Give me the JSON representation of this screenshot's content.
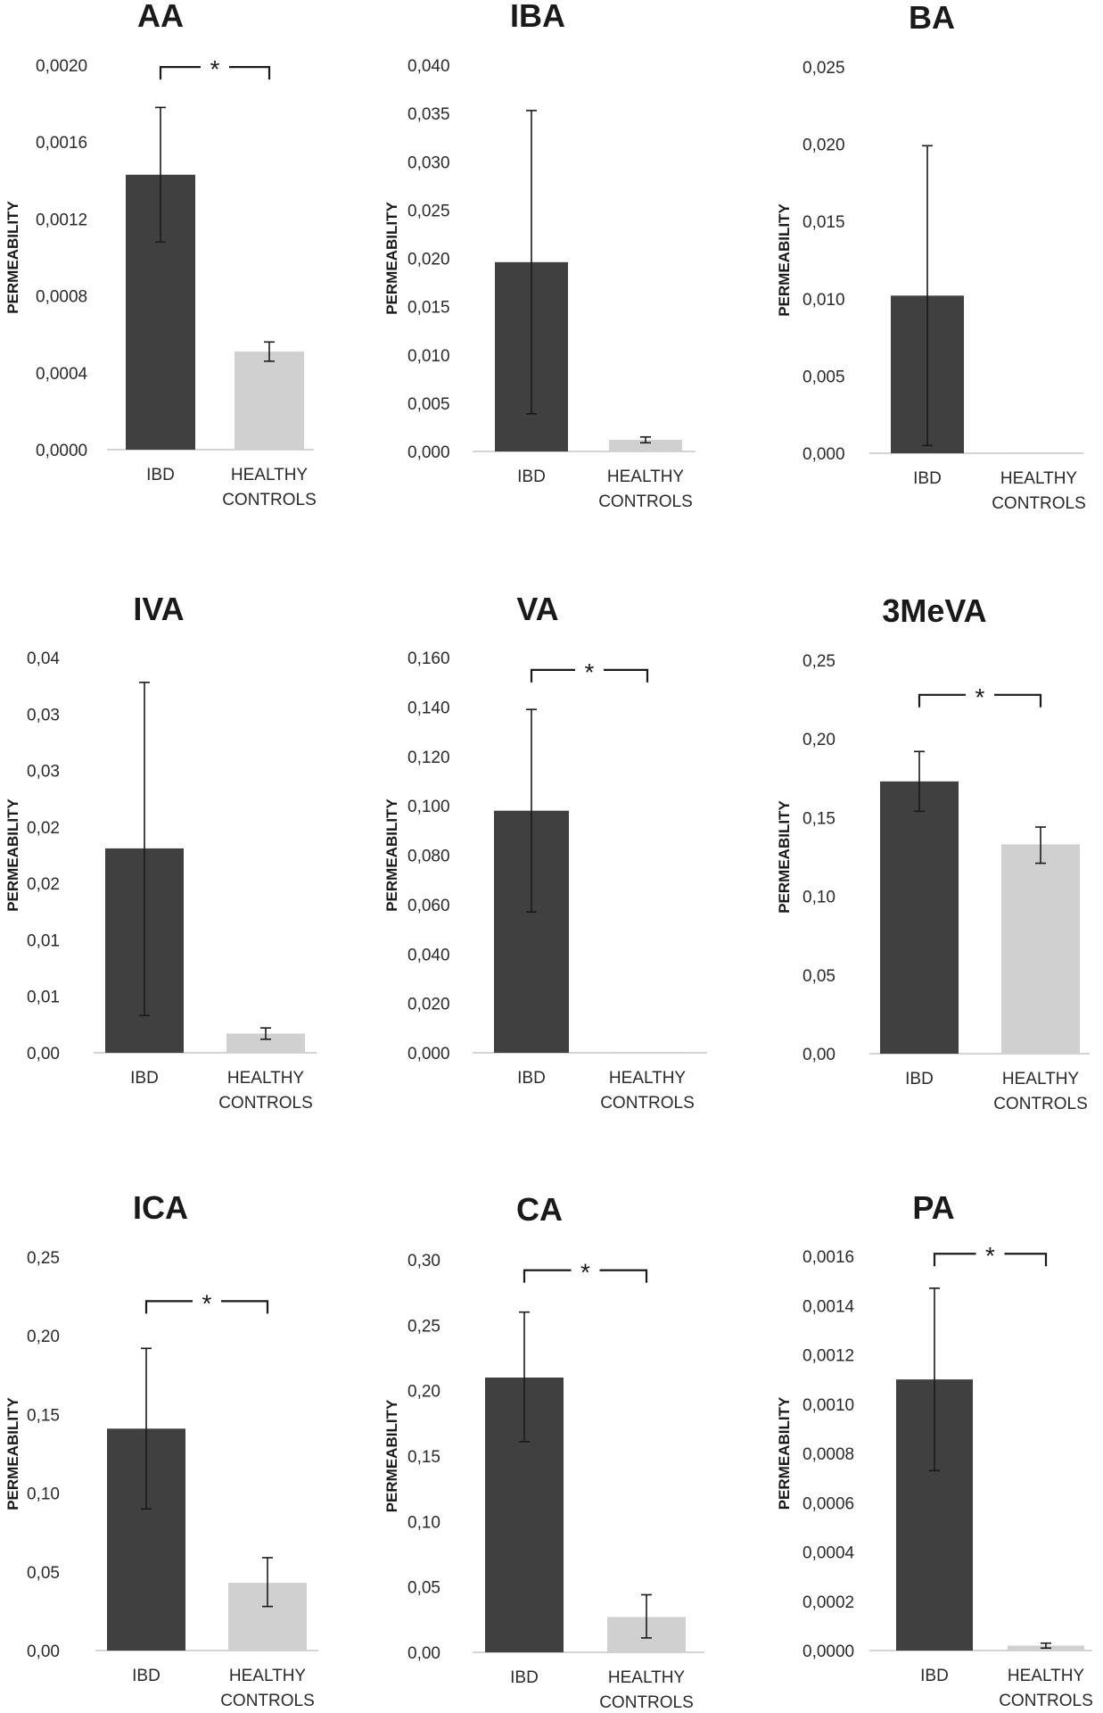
{
  "chart_data": [
    {
      "type": "bar",
      "title": "AA",
      "ylabel": "PERMEABILITY",
      "yticks": [
        "0,0000",
        "0,0004",
        "0,0008",
        "0,0012",
        "0,0016",
        "0,0020"
      ],
      "ylim": [
        0,
        0.002
      ],
      "categories": [
        "IBD",
        "HEALTHY CONTROLS"
      ],
      "values": [
        0.00143,
        0.00051
      ],
      "errors": [
        [
          0.00108,
          0.00178
        ],
        [
          0.00046,
          0.00056
        ]
      ],
      "colors": [
        "#404040",
        "#d0d0d0"
      ],
      "significance": {
        "label": "*",
        "level": 0.00199
      }
    },
    {
      "type": "bar",
      "title": "IBA",
      "ylabel": "PERMEABILITY",
      "yticks": [
        "0,000",
        "0,005",
        "0,010",
        "0,015",
        "0,020",
        "0,025",
        "0,030",
        "0,035",
        "0,040"
      ],
      "ylim": [
        0,
        0.04
      ],
      "categories": [
        "IBD",
        "HEALTHY CONTROLS"
      ],
      "values": [
        0.0196,
        0.0012
      ],
      "errors": [
        [
          0.0039,
          0.0353
        ],
        [
          0.0009,
          0.0015
        ]
      ],
      "colors": [
        "#404040",
        "#d0d0d0"
      ],
      "significance": null
    },
    {
      "type": "bar",
      "title": "BA",
      "ylabel": "PERMEABILITY",
      "yticks": [
        "0,000",
        "0,005",
        "0,010",
        "0,015",
        "0,020",
        "0,025"
      ],
      "ylim": [
        0,
        0.025
      ],
      "categories": [
        "IBD",
        "HEALTHY CONTROLS"
      ],
      "values": [
        0.0102,
        0.0
      ],
      "errors": [
        [
          0.0005,
          0.0199
        ],
        null
      ],
      "colors": [
        "#404040",
        "#d0d0d0"
      ],
      "significance": null
    },
    {
      "type": "bar",
      "title": "IVA",
      "ylabel": "PERMEABILITY",
      "yticks": [
        "0,00",
        "0,01",
        "0,01",
        "0,02",
        "0,02",
        "0,03",
        "0,03",
        "0,04"
      ],
      "ylim": [
        0,
        0.035
      ],
      "categories": [
        "IBD",
        "HEALTHY CONTROLS"
      ],
      "values": [
        0.0181,
        0.0017
      ],
      "errors": [
        [
          0.0033,
          0.0328
        ],
        [
          0.0012,
          0.0022
        ]
      ],
      "colors": [
        "#404040",
        "#d0d0d0"
      ],
      "significance": null
    },
    {
      "type": "bar",
      "title": "VA",
      "ylabel": "PERMEABILITY",
      "yticks": [
        "0,000",
        "0,020",
        "0,040",
        "0,060",
        "0,080",
        "0,100",
        "0,120",
        "0,140",
        "0,160"
      ],
      "ylim": [
        0,
        0.16
      ],
      "categories": [
        "IBD",
        "HEALTHY CONTROLS"
      ],
      "values": [
        0.098,
        0.0003
      ],
      "errors": [
        [
          0.057,
          0.139
        ],
        null
      ],
      "colors": [
        "#404040",
        "#d0d0d0"
      ],
      "significance": {
        "label": "*",
        "level": 0.155
      }
    },
    {
      "type": "bar",
      "title": "3MeVA",
      "ylabel": "PERMEABILITY",
      "yticks": [
        "0,00",
        "0,05",
        "0,10",
        "0,15",
        "0,20",
        "0,25"
      ],
      "ylim": [
        0,
        0.25
      ],
      "categories": [
        "IBD",
        "HEALTHY CONTROLS"
      ],
      "values": [
        0.173,
        0.133
      ],
      "errors": [
        [
          0.154,
          0.192
        ],
        [
          0.121,
          0.144
        ]
      ],
      "colors": [
        "#404040",
        "#d0d0d0"
      ],
      "significance": {
        "label": "*",
        "level": 0.228
      }
    },
    {
      "type": "bar",
      "title": "ICA",
      "ylabel": "PERMEABILITY",
      "yticks": [
        "0,00",
        "0,05",
        "0,10",
        "0,15",
        "0,20",
        "0,25"
      ],
      "ylim": [
        0,
        0.25
      ],
      "categories": [
        "IBD",
        "HEALTHY CONTROLS"
      ],
      "values": [
        0.141,
        0.043
      ],
      "errors": [
        [
          0.09,
          0.192
        ],
        [
          0.028,
          0.059
        ]
      ],
      "colors": [
        "#404040",
        "#d0d0d0"
      ],
      "significance": {
        "label": "*",
        "level": 0.222
      }
    },
    {
      "type": "bar",
      "title": "CA",
      "ylabel": "PERMEABILITY",
      "yticks": [
        "0,00",
        "0,05",
        "0,10",
        "0,15",
        "0,20",
        "0,25",
        "0,30"
      ],
      "ylim": [
        0,
        0.3
      ],
      "categories": [
        "IBD",
        "HEALTHY CONTROLS"
      ],
      "values": [
        0.21,
        0.027
      ],
      "errors": [
        [
          0.161,
          0.26
        ],
        [
          0.011,
          0.044
        ]
      ],
      "colors": [
        "#404040",
        "#d0d0d0"
      ],
      "significance": {
        "label": "*",
        "level": 0.292
      }
    },
    {
      "type": "bar",
      "title": "PA",
      "ylabel": "PERMEABILITY",
      "yticks": [
        "0,0000",
        "0,0002",
        "0,0004",
        "0,0006",
        "0,0008",
        "0,0010",
        "0,0012",
        "0,0014",
        "0,0016"
      ],
      "ylim": [
        0,
        0.0016
      ],
      "categories": [
        "IBD",
        "HEALTHY CONTROLS"
      ],
      "values": [
        0.0011,
        2e-05
      ],
      "errors": [
        [
          0.00073,
          0.00147
        ],
        [
          1e-05,
          3e-05
        ]
      ],
      "colors": [
        "#404040",
        "#d0d0d0"
      ],
      "significance": {
        "label": "*",
        "level": 0.00161
      }
    }
  ]
}
